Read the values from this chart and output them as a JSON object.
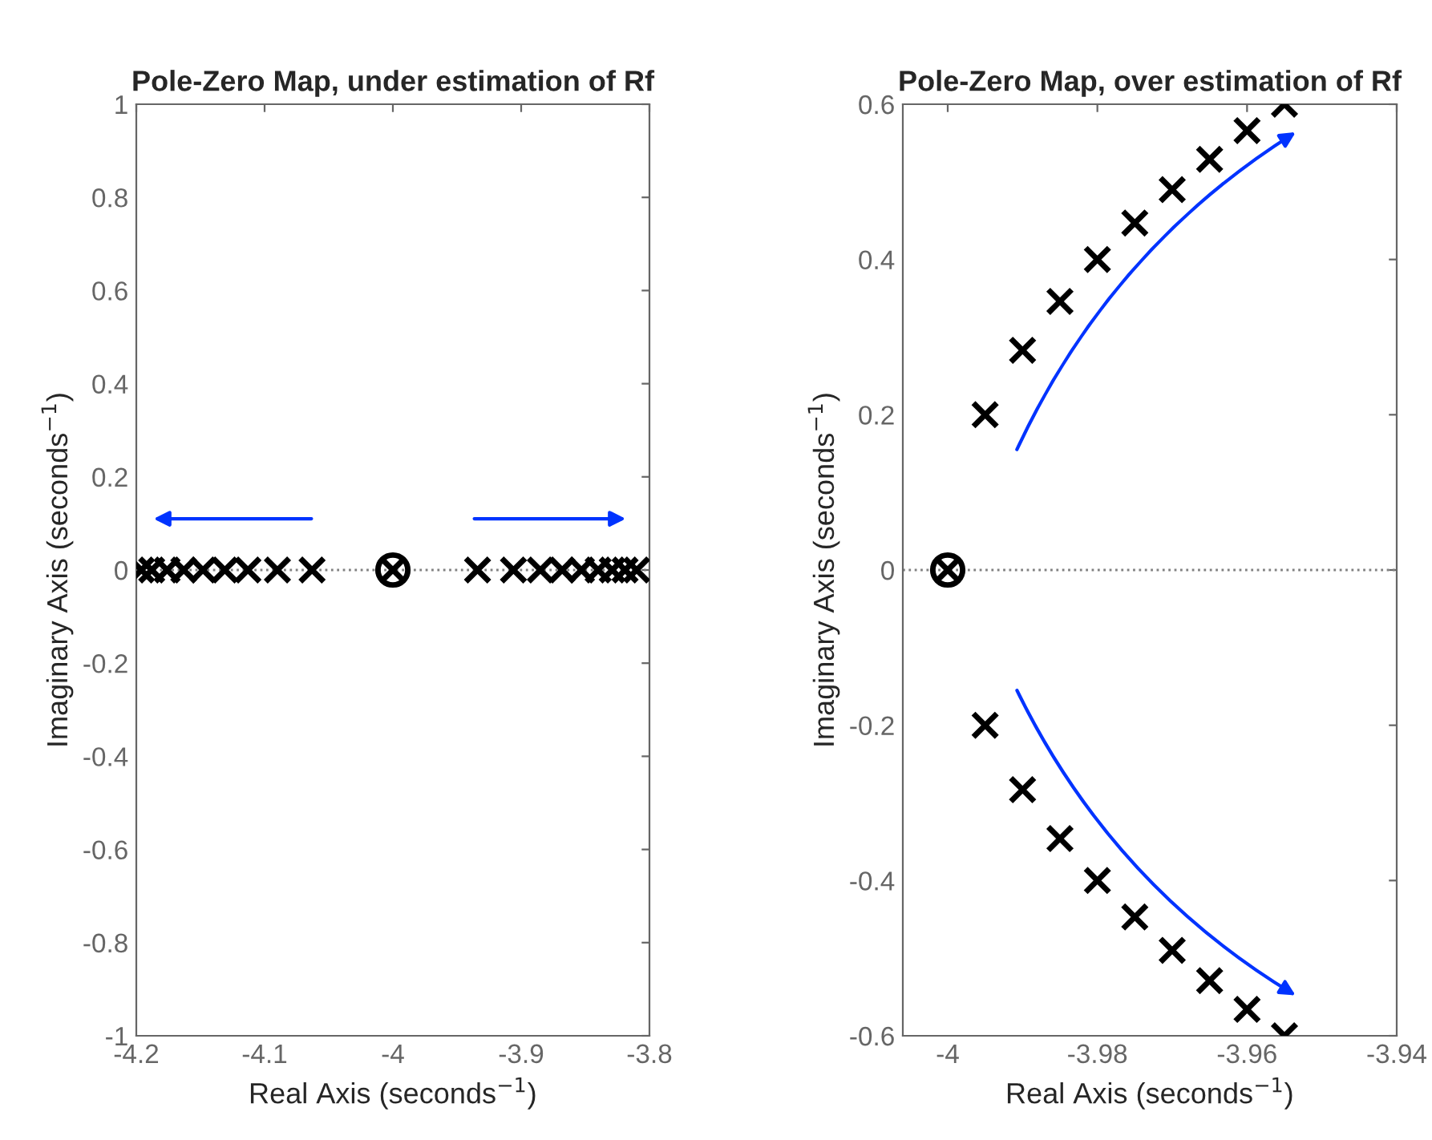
{
  "chart_data": [
    {
      "type": "scatter",
      "title": "Pole-Zero Map, under estimation of Rf",
      "xlabel": "Real Axis (seconds$^{−1}$)",
      "ylabel": "Imaginary Axis (seconds$^{−1}$)",
      "xlim": [
        -4.2,
        -3.8
      ],
      "ylim": [
        -1,
        1
      ],
      "xticks": [
        -4.2,
        -4.1,
        -4,
        -3.9,
        -3.8
      ],
      "yticks": [
        -1,
        -0.8,
        -0.6,
        -0.4,
        -0.2,
        0,
        0.2,
        0.4,
        0.6,
        0.8,
        1
      ],
      "grid": false,
      "ref_lines": [
        {
          "axis": "y",
          "value": 0,
          "color": "#808080",
          "line_style": "dotted"
        }
      ],
      "series": [
        {
          "color": "#000000",
          "marker": "cross",
          "x": [
            -4.196,
            -4.188,
            -4.176,
            -4.163,
            -4.148,
            -4.131,
            -4.113,
            -4.09,
            -4.063,
            -3.934,
            -3.906,
            -3.885,
            -3.868,
            -3.853,
            -3.84,
            -3.829,
            -3.819,
            -3.81
          ],
          "values": [
            0,
            0,
            0,
            0,
            0,
            0,
            0,
            0,
            0,
            0,
            0,
            0,
            0,
            0,
            0,
            0,
            0,
            0
          ]
        },
        {
          "color": "#000000",
          "marker": "circle",
          "x": [
            -4
          ],
          "values": [
            0
          ]
        },
        {
          "color": "#000000",
          "marker": "cross",
          "x": [
            -4
          ],
          "values": [
            0
          ]
        }
      ]
    },
    {
      "type": "scatter",
      "title": "Pole-Zero Map, over estimation of Rf",
      "xlabel": "Real Axis (seconds$^{−1}$)",
      "ylabel": "Imaginary Axis (seconds$^{−1}$)",
      "xlim": [
        -4.006,
        -3.94
      ],
      "ylim": [
        -0.6,
        0.6
      ],
      "xticks": [
        -4,
        -3.98,
        -3.96,
        -3.94
      ],
      "yticks": [
        -0.6,
        -0.4,
        -0.2,
        0,
        0.2,
        0.4,
        0.6
      ],
      "grid": false,
      "ref_lines": [
        {
          "axis": "y",
          "value": 0,
          "color": "#808080",
          "line_style": "dotted"
        }
      ],
      "series": [
        {
          "color": "#000000",
          "marker": "cross",
          "x": [
            -3.995,
            -3.99,
            -3.985,
            -3.98,
            -3.975,
            -3.97,
            -3.965,
            -3.96,
            -3.955,
            -3.995,
            -3.99,
            -3.985,
            -3.98,
            -3.975,
            -3.97,
            -3.965,
            -3.96,
            -3.955
          ],
          "values": [
            0.2,
            0.283,
            0.346,
            0.4,
            0.447,
            0.49,
            0.529,
            0.566,
            0.6,
            -0.2,
            -0.283,
            -0.346,
            -0.4,
            -0.447,
            -0.49,
            -0.529,
            -0.566,
            -0.6
          ]
        },
        {
          "color": "#000000",
          "marker": "circle",
          "x": [
            -4
          ],
          "values": [
            0
          ]
        },
        {
          "color": "#000000",
          "marker": "cross",
          "x": [
            -4
          ],
          "values": [
            0
          ]
        }
      ]
    }
  ]
}
